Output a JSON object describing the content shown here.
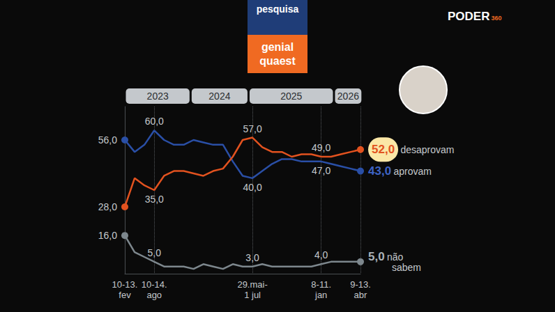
{
  "header": {
    "box_top": "pesquisa",
    "box_bottom": [
      "genial",
      "quaest"
    ],
    "logo": [
      "PODER",
      "360"
    ]
  },
  "chart_data": {
    "type": "line",
    "categories": [
      "10-13. fev",
      null,
      null,
      "10-14. ago",
      null,
      null,
      null,
      null,
      null,
      null,
      null,
      null,
      null,
      "29.mai- 1 jul",
      null,
      null,
      null,
      null,
      null,
      null,
      "8-11. jan",
      null,
      null,
      null,
      "9-13. abr"
    ],
    "periods": [
      {
        "label": "2023",
        "from": 0,
        "to": 6.7
      },
      {
        "label": "2024",
        "from": 6.7,
        "to": 12.6
      },
      {
        "label": "2025",
        "from": 12.6,
        "to": 21.3
      },
      {
        "label": "2026",
        "from": 21.3,
        "to": 24.2
      }
    ],
    "series": [
      {
        "name": "desaprovam",
        "color": "#e2521f",
        "values": [
          28,
          40,
          37,
          35,
          41,
          43,
          43,
          42,
          41,
          43,
          44,
          49,
          56,
          57,
          53,
          51,
          51,
          49,
          50,
          50,
          49,
          49,
          50,
          51,
          52
        ],
        "value_labels": [
          "28,0",
          null,
          null,
          "35,0",
          null,
          null,
          null,
          null,
          null,
          null,
          null,
          null,
          null,
          "57,0",
          null,
          null,
          null,
          null,
          null,
          null,
          "49,0",
          null,
          null,
          null,
          "52,0"
        ]
      },
      {
        "name": "aprovam",
        "color": "#2a4fa6",
        "values": [
          56,
          51,
          54,
          60,
          56,
          54,
          54,
          56,
          55,
          54,
          54,
          47,
          41,
          40,
          43,
          46,
          48,
          48,
          47,
          47,
          47,
          46,
          45,
          44,
          43
        ],
        "value_labels": [
          "56,0",
          null,
          null,
          "60,0",
          null,
          null,
          null,
          null,
          null,
          null,
          null,
          null,
          null,
          "40,0",
          null,
          null,
          null,
          null,
          null,
          null,
          "47,0",
          null,
          null,
          null,
          "43,0"
        ]
      },
      {
        "name": "não sabem",
        "color": "#7d878d",
        "values": [
          16,
          9,
          7,
          5,
          3,
          3,
          3,
          2,
          4,
          3,
          2,
          4,
          3,
          3,
          4,
          3,
          3,
          3,
          3,
          3,
          4,
          5,
          5,
          5,
          5
        ],
        "value_labels": [
          "16,0",
          null,
          null,
          "5,0",
          null,
          null,
          null,
          null,
          null,
          null,
          null,
          null,
          null,
          "3,0",
          null,
          null,
          null,
          null,
          null,
          null,
          "4,0",
          null,
          null,
          null,
          "5,0"
        ]
      }
    ],
    "ylim": [
      0,
      70
    ],
    "grid": false,
    "data_labels": true,
    "tick_labels": "x",
    "marker": "circle"
  }
}
